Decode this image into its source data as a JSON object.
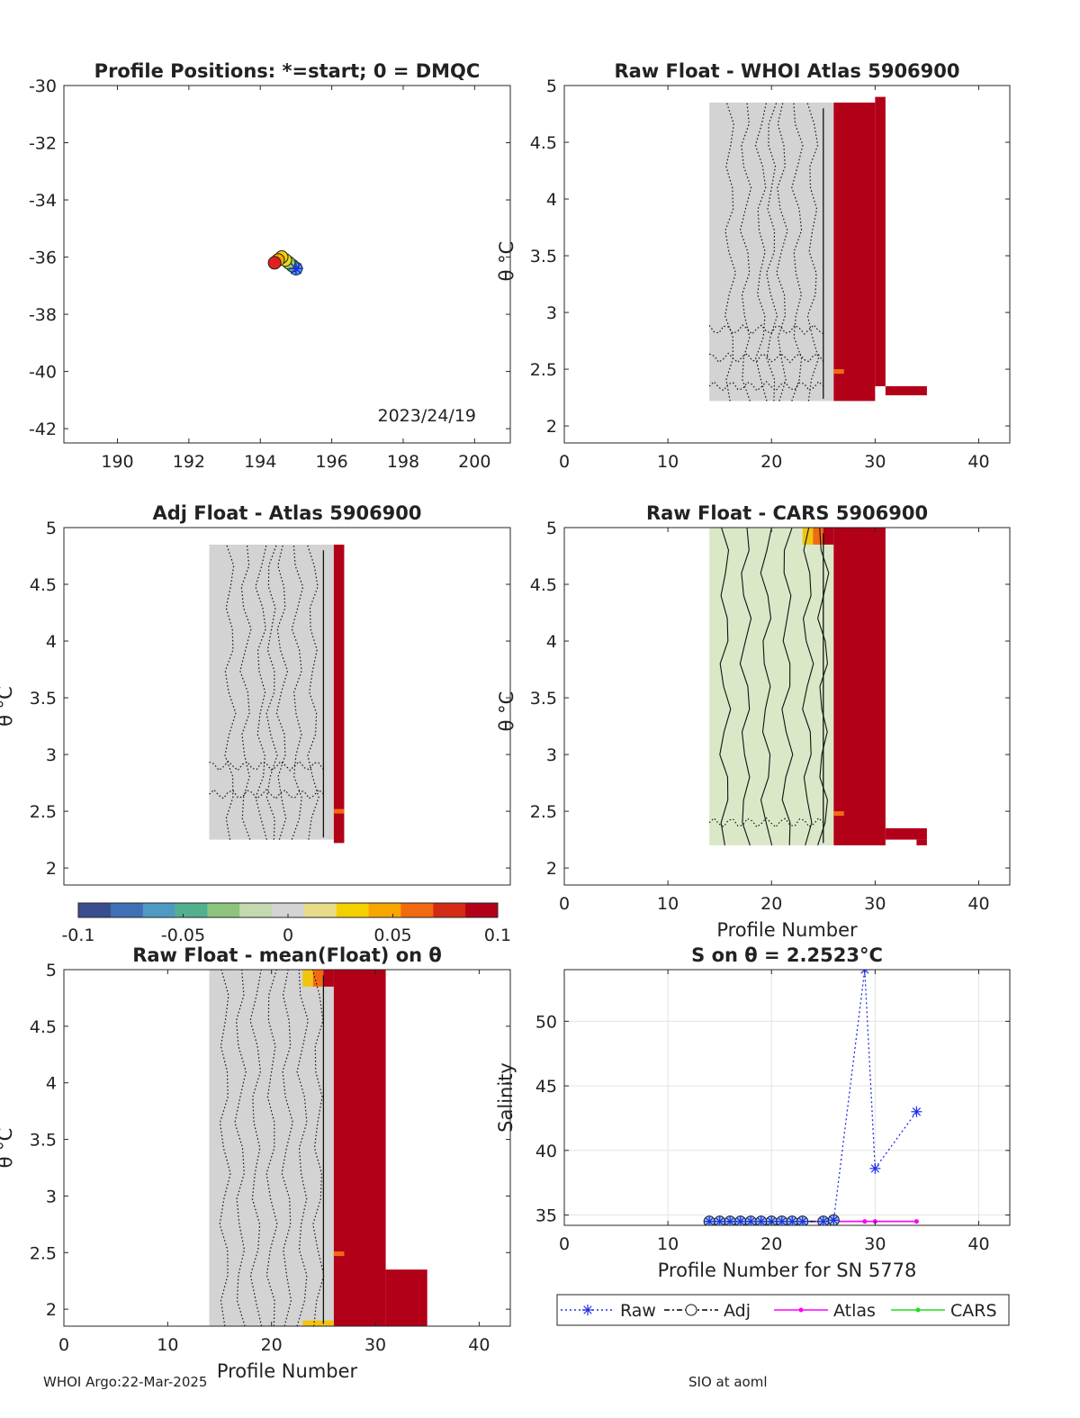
{
  "colors": {
    "neutral": "#d3d3d3",
    "pale_green": "#dbe8c8",
    "red": "#b20019",
    "orange": "#f26a10",
    "yellow": "#f1c40f",
    "raw": "#1f2de8",
    "adj": "#000000",
    "atlas": "#ff00ff",
    "cars": "#22dd22"
  },
  "colormap": [
    "#3a4d8f",
    "#3f6fb5",
    "#4d9bc2",
    "#53b08f",
    "#8cc47e",
    "#c3d9b0",
    "#d3d3d3",
    "#e8dc8a",
    "#f4d000",
    "#f7a600",
    "#f26a10",
    "#d42a14",
    "#b20019"
  ],
  "footer": {
    "left": "WHOI Argo:22-Mar-2025",
    "right": "SIO at aoml"
  },
  "theta_label": "θ °C",
  "chart_data": [
    {
      "id": "positions",
      "type": "scatter",
      "title": "Profile Positions: *=start; 0 = DMQC",
      "xlim": [
        188.5,
        201
      ],
      "ylim": [
        -42.5,
        -30
      ],
      "xticks": [
        190,
        192,
        194,
        196,
        198,
        200
      ],
      "yticks": [
        -30,
        -32,
        -34,
        -36,
        -38,
        -40,
        -42
      ],
      "annotation": "2023/24/19",
      "points": [
        {
          "lon": 195.0,
          "lat": -36.4,
          "color": "#4aa3df"
        },
        {
          "lon": 194.9,
          "lat": -36.3,
          "color": "#46b98a"
        },
        {
          "lon": 194.8,
          "lat": -36.2,
          "color": "#9ccd4c"
        },
        {
          "lon": 194.7,
          "lat": -36.1,
          "color": "#e2e21c"
        },
        {
          "lon": 194.6,
          "lat": -36.0,
          "color": "#f4d000"
        },
        {
          "lon": 194.5,
          "lat": -36.1,
          "color": "#f7a600"
        },
        {
          "lon": 194.4,
          "lat": -36.2,
          "color": "#e02020"
        }
      ],
      "start": {
        "lon": 195.0,
        "lat": -36.4
      }
    },
    {
      "id": "raw-atlas",
      "type": "heatmap",
      "title": "Raw Float - WHOI Atlas  5906900",
      "xlim": [
        0,
        43
      ],
      "ylim": [
        1.85,
        5
      ],
      "xticks": [
        0,
        10,
        20,
        30,
        40
      ],
      "yticks": [
        2,
        2.5,
        3,
        3.5,
        4,
        4.5,
        5
      ],
      "xlabel": "",
      "ylabel": "",
      "cells": [
        {
          "x": [
            14,
            26
          ],
          "y": [
            2.22,
            4.85
          ],
          "c": "neutral"
        },
        {
          "x": [
            26,
            30
          ],
          "y": [
            2.22,
            4.85
          ],
          "c": "red"
        },
        {
          "x": [
            30,
            31
          ],
          "y": [
            2.35,
            4.9
          ],
          "c": "red"
        },
        {
          "x": [
            31,
            35
          ],
          "y": [
            2.27,
            2.35
          ],
          "c": "red"
        },
        {
          "x": [
            26,
            27
          ],
          "y": [
            2.46,
            2.5
          ],
          "c": "orange"
        }
      ],
      "contours": [
        16,
        17.5,
        19,
        20,
        21,
        22.5,
        24
      ],
      "hlines": [
        2.35,
        2.6,
        2.85
      ]
    },
    {
      "id": "adj-atlas",
      "type": "heatmap",
      "title": "Adj Float - Atlas  5906900",
      "xlim": [
        0,
        43
      ],
      "ylim": [
        1.85,
        5
      ],
      "xticks": [],
      "yticks": [
        2,
        2.5,
        3,
        3.5,
        4,
        4.5,
        5
      ],
      "xlabel": "",
      "ylabel": "θ °C",
      "cells": [
        {
          "x": [
            14,
            26
          ],
          "y": [
            2.25,
            4.85
          ],
          "c": "neutral"
        },
        {
          "x": [
            26,
            27
          ],
          "y": [
            2.22,
            4.85
          ],
          "c": "red"
        },
        {
          "x": [
            26,
            27
          ],
          "y": [
            2.48,
            2.52
          ],
          "c": "orange"
        }
      ],
      "contours": [
        16,
        17.5,
        19,
        20,
        21,
        22.5,
        24
      ],
      "hlines": [
        2.65,
        2.9
      ]
    },
    {
      "id": "raw-cars",
      "type": "heatmap",
      "title": "Raw Float - CARS  5906900",
      "xlim": [
        0,
        43
      ],
      "ylim": [
        1.85,
        5
      ],
      "xticks": [
        0,
        10,
        20,
        30,
        40
      ],
      "yticks": [
        2,
        2.5,
        3,
        3.5,
        4,
        4.5,
        5
      ],
      "xlabel": "Profile Number",
      "ylabel": "",
      "cells": [
        {
          "x": [
            14,
            26
          ],
          "y": [
            2.2,
            5.0
          ],
          "c": "pale_green"
        },
        {
          "x": [
            23,
            24
          ],
          "y": [
            4.85,
            5.0
          ],
          "c": "yellow"
        },
        {
          "x": [
            24,
            25
          ],
          "y": [
            4.85,
            5.0
          ],
          "c": "orange"
        },
        {
          "x": [
            25,
            26
          ],
          "y": [
            4.85,
            5.0
          ],
          "c": "red"
        },
        {
          "x": [
            26,
            31
          ],
          "y": [
            2.2,
            5.0
          ],
          "c": "red"
        },
        {
          "x": [
            31,
            35
          ],
          "y": [
            2.25,
            2.35
          ],
          "c": "red"
        },
        {
          "x": [
            34,
            35
          ],
          "y": [
            2.2,
            2.25
          ],
          "c": "red"
        },
        {
          "x": [
            26,
            27
          ],
          "y": [
            2.46,
            2.5
          ],
          "c": "orange"
        }
      ],
      "contours": [
        15.5,
        17.5,
        19.5,
        21.5,
        23.5,
        25
      ],
      "hlines": [
        2.4
      ]
    },
    {
      "id": "raw-mean",
      "type": "heatmap",
      "title": "Raw Float - mean(Float) on θ",
      "xlim": [
        0,
        43
      ],
      "ylim": [
        1.85,
        5
      ],
      "xticks": [
        0,
        10,
        20,
        30,
        40
      ],
      "yticks": [
        2,
        2.5,
        3,
        3.5,
        4,
        4.5,
        5
      ],
      "xlabel": "Profile Number",
      "ylabel": "θ °C",
      "cells": [
        {
          "x": [
            14,
            26
          ],
          "y": [
            1.85,
            5.0
          ],
          "c": "neutral"
        },
        {
          "x": [
            23,
            24
          ],
          "y": [
            4.85,
            5.0
          ],
          "c": "yellow"
        },
        {
          "x": [
            24,
            25
          ],
          "y": [
            4.85,
            5.0
          ],
          "c": "orange"
        },
        {
          "x": [
            25,
            26
          ],
          "y": [
            4.85,
            5.0
          ],
          "c": "red"
        },
        {
          "x": [
            26,
            31
          ],
          "y": [
            1.85,
            5.0
          ],
          "c": "red"
        },
        {
          "x": [
            31,
            35
          ],
          "y": [
            1.85,
            2.35
          ],
          "c": "red"
        },
        {
          "x": [
            26,
            27
          ],
          "y": [
            2.47,
            2.51
          ],
          "c": "orange"
        },
        {
          "x": [
            23,
            26
          ],
          "y": [
            1.85,
            1.9
          ],
          "c": "yellow"
        }
      ],
      "contours": [
        15.5,
        17,
        18.5,
        20,
        21.5,
        23,
        24.5
      ],
      "hlines": []
    },
    {
      "id": "salinity",
      "type": "line",
      "title": "S on θ = 2.2523°C",
      "xlim": [
        0,
        43
      ],
      "ylim": [
        34.2,
        54
      ],
      "xticks": [
        0,
        10,
        20,
        30,
        40
      ],
      "yticks": [
        35,
        40,
        45,
        50
      ],
      "xlabel": "Profile Number for SN 5778",
      "ylabel": "Salinity",
      "grid": true,
      "legend_position": "bottom",
      "series": [
        {
          "name": "Raw",
          "style": "raw",
          "x": [
            14,
            15,
            16,
            17,
            18,
            19,
            20,
            21,
            22,
            23,
            25,
            26,
            29,
            30,
            34
          ],
          "y": [
            34.5,
            34.5,
            34.5,
            34.5,
            34.5,
            34.5,
            34.5,
            34.5,
            34.5,
            34.5,
            34.5,
            34.6,
            54.0,
            38.6,
            43.0
          ]
        },
        {
          "name": "Adj",
          "style": "adj",
          "x": [
            14,
            15,
            16,
            17,
            18,
            19,
            20,
            21,
            22,
            23,
            25,
            26
          ],
          "y": [
            34.5,
            34.5,
            34.5,
            34.5,
            34.5,
            34.5,
            34.5,
            34.5,
            34.5,
            34.5,
            34.5,
            34.6
          ]
        },
        {
          "name": "Atlas",
          "style": "atlas",
          "x": [
            14,
            15,
            16,
            17,
            18,
            19,
            20,
            21,
            22,
            23,
            25,
            26,
            29,
            30,
            34
          ],
          "y": [
            34.5,
            34.5,
            34.5,
            34.5,
            34.5,
            34.5,
            34.5,
            34.5,
            34.5,
            34.5,
            34.5,
            34.5,
            34.5,
            34.5,
            34.5
          ]
        },
        {
          "name": "CARS",
          "style": "cars",
          "x": [
            14,
            15,
            16,
            17,
            18,
            19,
            20,
            21,
            22,
            23,
            25,
            26,
            29,
            30,
            34
          ],
          "y": [
            34.5,
            34.5,
            34.5,
            34.5,
            34.5,
            34.5,
            34.5,
            34.5,
            34.5,
            34.5,
            34.5,
            34.5,
            34.5,
            34.5,
            34.5
          ]
        }
      ]
    }
  ],
  "colorbar": {
    "min": -0.1,
    "max": 0.1,
    "ticks": [
      "-0.1",
      "-0.05",
      "0",
      "0.05",
      "0.1"
    ]
  }
}
